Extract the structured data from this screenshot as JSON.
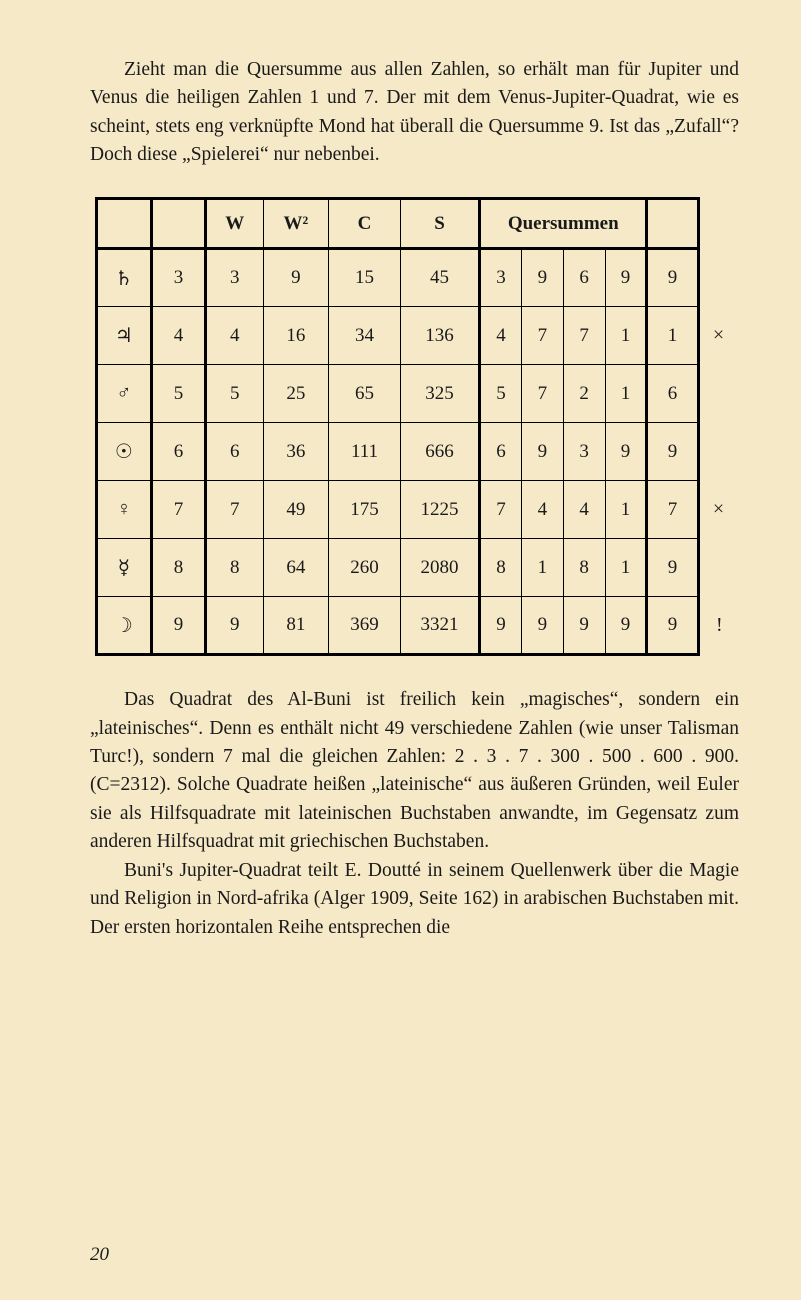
{
  "para1": "Zieht man die Quersumme aus allen Zahlen, so erhält man für Jupiter und Venus die heiligen Zahlen 1 und 7. Der mit dem Venus-Jupiter-Quadrat, wie es scheint, stets eng verknüpfte Mond hat überall die Quersumme 9. Ist das „Zufall“? Doch diese „Spielerei“ nur nebenbei.",
  "table": {
    "headers": {
      "w": "W",
      "w2": "W²",
      "c": "C",
      "s": "S",
      "q": "Quersummen"
    },
    "rows": [
      {
        "sym": "♄",
        "n": "3",
        "w": "3",
        "w2": "9",
        "c": "15",
        "s": "45",
        "q": [
          "3",
          "9",
          "6",
          "9"
        ],
        "qs": "9",
        "side": ""
      },
      {
        "sym": "♃",
        "n": "4",
        "w": "4",
        "w2": "16",
        "c": "34",
        "s": "136",
        "q": [
          "4",
          "7",
          "7",
          "1"
        ],
        "qs": "1",
        "side": "×"
      },
      {
        "sym": "♂",
        "n": "5",
        "w": "5",
        "w2": "25",
        "c": "65",
        "s": "325",
        "q": [
          "5",
          "7",
          "2",
          "1"
        ],
        "qs": "6",
        "side": ""
      },
      {
        "sym": "☉",
        "n": "6",
        "w": "6",
        "w2": "36",
        "c": "111",
        "s": "666",
        "q": [
          "6",
          "9",
          "3",
          "9"
        ],
        "qs": "9",
        "side": ""
      },
      {
        "sym": "♀",
        "n": "7",
        "w": "7",
        "w2": "49",
        "c": "175",
        "s": "1225",
        "q": [
          "7",
          "4",
          "4",
          "1"
        ],
        "qs": "7",
        "side": "×"
      },
      {
        "sym": "☿",
        "n": "8",
        "w": "8",
        "w2": "64",
        "c": "260",
        "s": "2080",
        "q": [
          "8",
          "1",
          "8",
          "1"
        ],
        "qs": "9",
        "side": ""
      },
      {
        "sym": "☽",
        "n": "9",
        "w": "9",
        "w2": "81",
        "c": "369",
        "s": "3321",
        "q": [
          "9",
          "9",
          "9",
          "9"
        ],
        "qs": "9",
        "side": "!"
      }
    ]
  },
  "para2": "Das Quadrat des Al-Buni ist freilich kein „magisches“, sondern ein „lateinisches“. Denn es enthält nicht 49 verschiedene Zahlen (wie unser Talisman Turc!), sondern 7 mal die gleichen Zahlen: 2 . 3 . 7 . 300 . 500 . 600 . 900. (C=2312). Solche Quadrate heißen „lateinische“ aus äußeren Gründen, weil Euler sie als Hilfsquadrate mit lateinischen Buchstaben anwandte, im Gegensatz zum anderen Hilfsquadrat mit griechischen Buchstaben.",
  "para3": "Buni's Jupiter-Quadrat teilt E. Doutté in seinem Quellenwerk über die Magie und Religion in Nord-afrika (Alger 1909, Seite 162) in arabischen Buchstaben mit. Der ersten horizontalen Reihe entsprechen die",
  "pageNum": "20"
}
